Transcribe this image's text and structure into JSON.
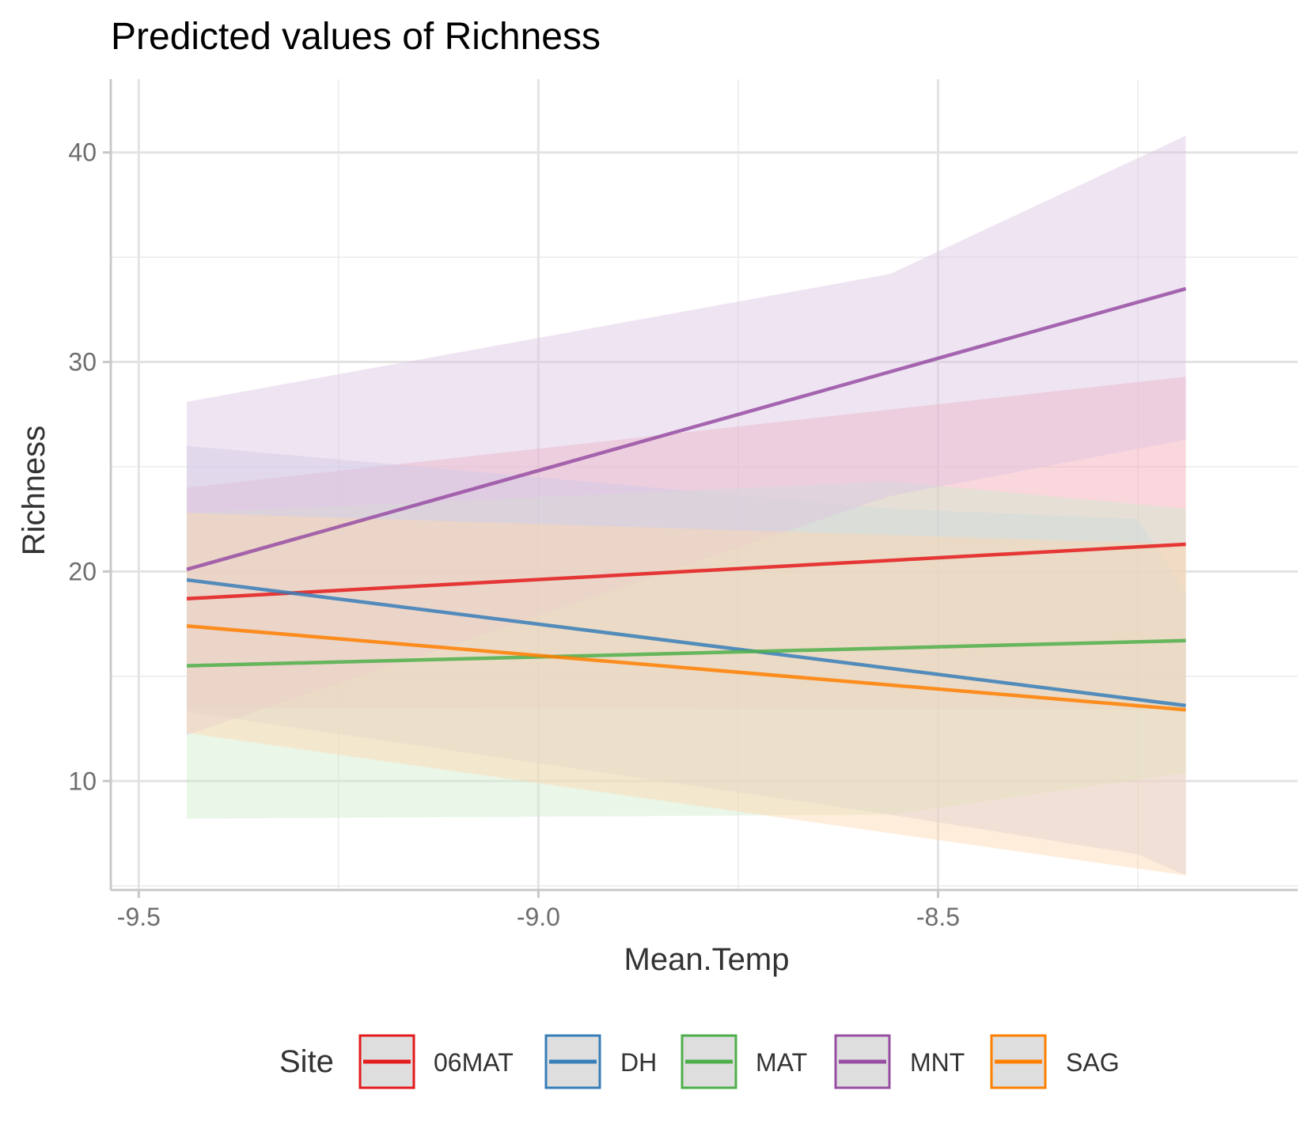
{
  "chart_data": {
    "type": "line",
    "title": "Predicted values of Richness",
    "xlabel": "Mean.Temp",
    "ylabel": "Richness",
    "xlim": [
      -9.535,
      -8.05
    ],
    "ylim": [
      4.8,
      43.5
    ],
    "x_ticks": [
      -9.5,
      -9.0,
      -8.5
    ],
    "x_tick_labels": [
      "-9.5",
      "-9.0",
      "-8.5"
    ],
    "x_minor_ticks": [
      -9.25,
      -8.75,
      -8.25
    ],
    "y_ticks": [
      10,
      20,
      30,
      40
    ],
    "y_tick_labels": [
      "10",
      "20",
      "30",
      "40"
    ],
    "y_minor_ticks": [
      5,
      15,
      25,
      35
    ],
    "grid": true,
    "legend": {
      "title": "Site",
      "position": "bottom"
    },
    "series": [
      {
        "name": "06MAT",
        "color": "#e41a1c",
        "fill_color": "#f4a5b4",
        "x": [
          -9.44,
          -8.19
        ],
        "y": [
          18.7,
          21.3
        ],
        "ci": {
          "x": [
            -9.44,
            -8.19
          ],
          "upper": [
            24.0,
            29.3
          ],
          "lower": [
            13.5,
            13.4
          ]
        }
      },
      {
        "name": "DH",
        "color": "#377eb8",
        "fill_color": "#c7cce8",
        "x": [
          -9.44,
          -8.19
        ],
        "y": [
          19.6,
          13.6
        ],
        "ci": {
          "x": [
            -9.44,
            -8.56,
            -8.25,
            -8.19
          ],
          "upper": [
            26.0,
            23.0,
            22.5,
            19.0
          ],
          "lower": [
            13.3,
            8.4,
            6.5,
            5.5
          ]
        }
      },
      {
        "name": "MAT",
        "color": "#4daf4a",
        "fill_color": "#cfeacd",
        "x": [
          -9.44,
          -8.19
        ],
        "y": [
          15.5,
          16.7
        ],
        "ci": {
          "x": [
            -9.44,
            -8.56,
            -8.19
          ],
          "upper": [
            22.8,
            24.3,
            23.0
          ],
          "lower": [
            8.2,
            8.4,
            10.4
          ]
        }
      },
      {
        "name": "MNT",
        "color": "#984ea3",
        "fill_color": "#dcc6e2",
        "x": [
          -9.44,
          -8.19
        ],
        "y": [
          20.1,
          33.5
        ],
        "ci": {
          "x": [
            -9.44,
            -8.56,
            -8.19
          ],
          "upper": [
            28.1,
            34.2,
            40.8
          ],
          "lower": [
            12.2,
            23.6,
            26.3
          ]
        }
      },
      {
        "name": "SAG",
        "color": "#ff7f00",
        "fill_color": "#fed7b0",
        "x": [
          -9.44,
          -8.19
        ],
        "y": [
          17.4,
          13.4
        ],
        "ci": {
          "x": [
            -9.44,
            -8.19
          ],
          "upper": [
            22.8,
            21.3
          ],
          "lower": [
            12.3,
            5.5
          ]
        }
      }
    ]
  }
}
